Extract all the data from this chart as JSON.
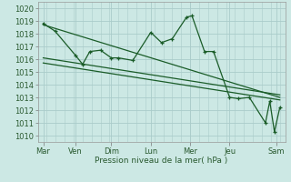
{
  "title": "Pression niveau de la mer( hPa )",
  "bg_color": "#cce8e4",
  "grid_color": "#aaccca",
  "line_color": "#1a5c28",
  "xlabels": [
    "Mar",
    "Ven",
    "Dim",
    "Lun",
    "Mer",
    "Jeu",
    "Sam"
  ],
  "xtick_pos": [
    0,
    0.9,
    1.9,
    3.0,
    4.1,
    5.2,
    6.5
  ],
  "ylim": [
    1009.5,
    1020.5
  ],
  "yticks": [
    1010,
    1011,
    1012,
    1013,
    1014,
    1015,
    1016,
    1017,
    1018,
    1019,
    1020
  ],
  "series1_x": [
    0.0,
    0.33,
    0.9,
    1.1,
    1.3,
    1.6,
    1.9,
    2.1,
    2.5,
    3.0,
    3.3,
    3.6,
    4.0,
    4.15,
    4.5,
    4.75,
    5.2,
    5.45,
    5.75,
    6.2,
    6.32,
    6.45,
    6.6
  ],
  "series1_y": [
    1018.8,
    1018.2,
    1016.3,
    1015.6,
    1016.6,
    1016.7,
    1016.1,
    1016.1,
    1015.9,
    1018.1,
    1017.3,
    1017.6,
    1019.3,
    1019.4,
    1016.6,
    1016.6,
    1013.0,
    1012.9,
    1013.0,
    1011.0,
    1012.7,
    1010.3,
    1012.2
  ],
  "trend1_x": [
    0.0,
    6.6
  ],
  "trend1_y": [
    1018.7,
    1013.0
  ],
  "trend2_x": [
    0.0,
    6.6
  ],
  "trend2_y": [
    1016.1,
    1013.2
  ],
  "trend3_x": [
    0.0,
    6.6
  ],
  "trend3_y": [
    1015.7,
    1012.8
  ]
}
